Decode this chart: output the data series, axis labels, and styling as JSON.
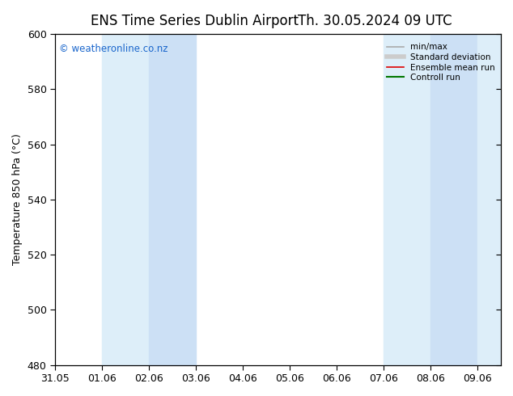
{
  "title_left": "ENS Time Series Dublin Airport",
  "title_right": "Th. 30.05.2024 09 UTC",
  "ylabel": "Temperature 850 hPa (°C)",
  "ylim": [
    480,
    600
  ],
  "yticks": [
    480,
    500,
    520,
    540,
    560,
    580,
    600
  ],
  "xtick_labels": [
    "31.05",
    "01.06",
    "02.06",
    "03.06",
    "04.06",
    "05.06",
    "06.06",
    "07.06",
    "08.06",
    "09.06"
  ],
  "watermark": "© weatheronline.co.nz",
  "watermark_color": "#1a66cc",
  "background_color": "#ffffff",
  "plot_bg_color": "#ffffff",
  "shaded_bands": [
    {
      "xstart": 1,
      "xend": 2,
      "color": "#ddeef9"
    },
    {
      "xstart": 2,
      "xend": 3,
      "color": "#cce0f5"
    },
    {
      "xstart": 7,
      "xend": 8,
      "color": "#ddeef9"
    },
    {
      "xstart": 8,
      "xend": 9,
      "color": "#cce0f5"
    },
    {
      "xstart": 9,
      "xend": 9.5,
      "color": "#ddeef9"
    }
  ],
  "legend_entries": [
    {
      "label": "min/max",
      "color": "#aaaaaa",
      "lw": 1.2,
      "style": "solid"
    },
    {
      "label": "Standard deviation",
      "color": "#cccccc",
      "lw": 4,
      "style": "solid"
    },
    {
      "label": "Ensemble mean run",
      "color": "#dd0000",
      "lw": 1.2,
      "style": "solid"
    },
    {
      "label": "Controll run",
      "color": "#007700",
      "lw": 1.5,
      "style": "solid"
    }
  ],
  "title_fontsize": 12,
  "tick_fontsize": 9,
  "ylabel_fontsize": 9,
  "num_xticks": 10
}
